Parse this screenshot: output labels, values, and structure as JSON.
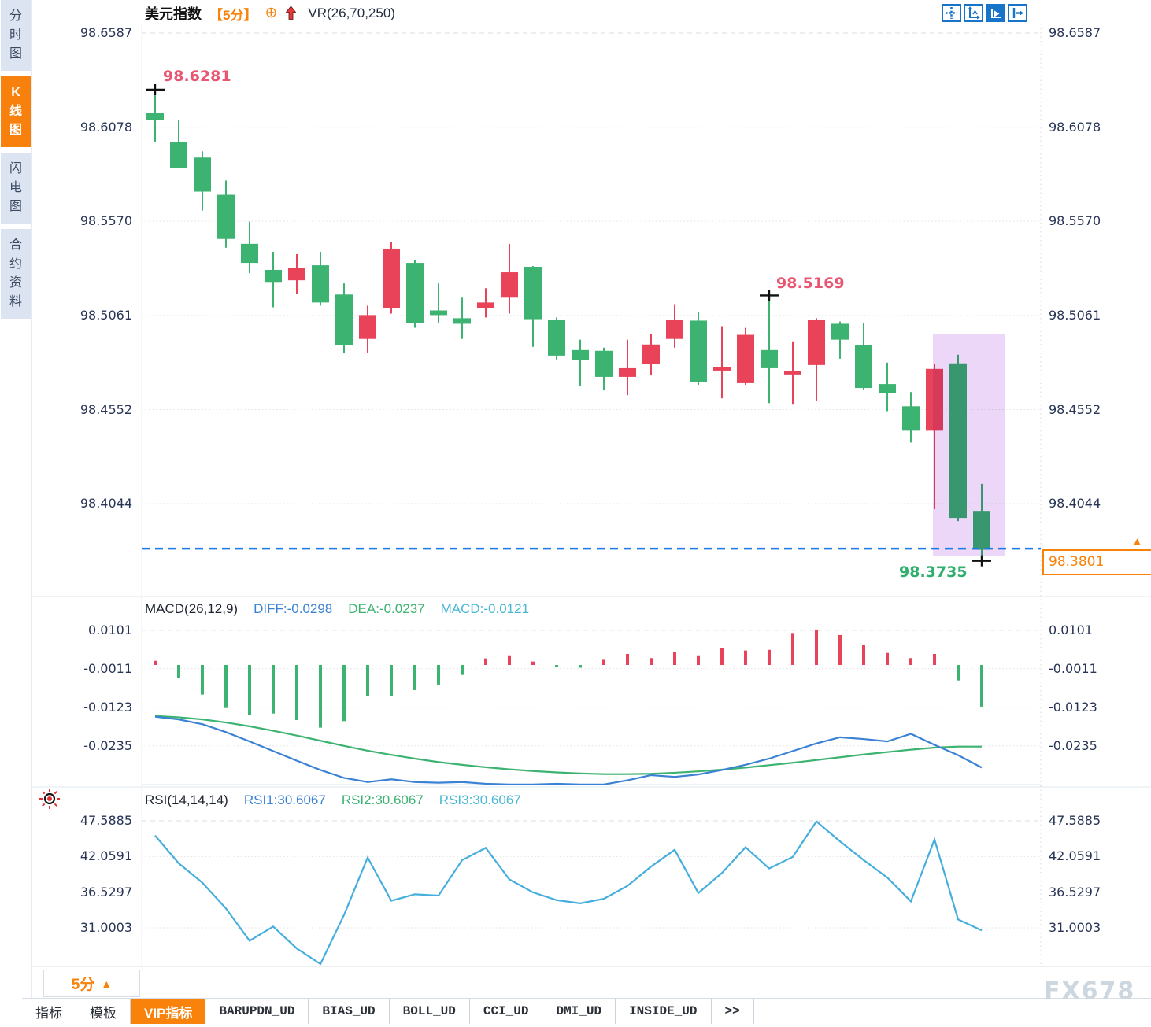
{
  "header": {
    "title": "美元指数",
    "period": "【5分】",
    "link_icon": "⊕",
    "vr_indicator": "VR(26,70,250)"
  },
  "sidebar": {
    "items": [
      {
        "label": "分时图",
        "active": false
      },
      {
        "label": "K线图",
        "active": true
      },
      {
        "label": "闪电图",
        "active": false
      },
      {
        "label": "合约资料",
        "active": false
      }
    ]
  },
  "toolbar_icons": [
    "pan-crosshair-icon",
    "axis-scale-icon",
    "auto-scroll-icon",
    "jump-to-latest-icon"
  ],
  "annotations": {
    "high_first": "98.6281",
    "high_mid": "98.5169",
    "low_last": "98.3735",
    "current_price_tag": "98.3801",
    "tag_arrow": "▲"
  },
  "macd_panel": {
    "name": "MACD(26,12,9)",
    "diff_label": "DIFF:-0.0298",
    "dea_label": "DEA:-0.0237",
    "macd_label": "MACD:-0.0121"
  },
  "rsi_panel": {
    "name": "RSI(14,14,14)",
    "rsi1_label": "RSI1:30.6067",
    "rsi2_label": "RSI2:30.6067",
    "rsi3_label": "RSI3:30.6067"
  },
  "bottom": {
    "timeframe": "5分",
    "timeframe_arrow": "▲",
    "tabs": [
      {
        "label": "指标",
        "active": false,
        "mono": false
      },
      {
        "label": "模板",
        "active": false,
        "mono": false
      },
      {
        "label": "VIP指标",
        "active": true,
        "mono": false
      },
      {
        "label": "BARUPDN_UD",
        "active": false,
        "mono": true
      },
      {
        "label": "BIAS_UD",
        "active": false,
        "mono": true
      },
      {
        "label": "BOLL_UD",
        "active": false,
        "mono": true
      },
      {
        "label": "CCI_UD",
        "active": false,
        "mono": true
      },
      {
        "label": "DMI_UD",
        "active": false,
        "mono": true
      },
      {
        "label": "INSIDE_UD",
        "active": false,
        "mono": true
      },
      {
        "label": ">>",
        "active": false,
        "mono": true
      }
    ]
  },
  "watermark": "FX678",
  "colors": {
    "up_red": "#e9435a",
    "down_green": "#3cb371",
    "diff_line": "#3b82d4",
    "dea_line": "#3cb371",
    "rsi_line": "#45aedd",
    "accent_orange": "#f8820a",
    "support_dash": "#1b7ce8",
    "highlight_box": "#ddb6f2",
    "grid": "#e3e3e3",
    "panel_border": "#dfe8f2"
  },
  "chart_data": {
    "type": "candlestick",
    "symbol": "美元指数",
    "interval": "5分",
    "main_axis": {
      "labels": [
        "98.6587",
        "98.6078",
        "98.5570",
        "98.5061",
        "98.4552",
        "98.4044"
      ],
      "values": [
        98.6587,
        98.6078,
        98.557,
        98.5061,
        98.4552,
        98.4044
      ]
    },
    "support_line_price": 98.3801,
    "candles_ohlc": [
      [
        98.6154,
        98.6281,
        98.5999,
        98.6115
      ],
      [
        98.5996,
        98.6115,
        98.5859,
        98.5859
      ],
      [
        98.5914,
        98.5948,
        98.5627,
        98.573
      ],
      [
        98.5713,
        98.579,
        98.5427,
        98.5474
      ],
      [
        98.5448,
        98.5568,
        98.5289,
        98.5345
      ],
      [
        98.5307,
        98.5405,
        98.5105,
        98.5242
      ],
      [
        98.5251,
        98.5392,
        98.5178,
        98.5319
      ],
      [
        98.5332,
        98.5405,
        98.5114,
        98.5131
      ],
      [
        98.5174,
        98.5234,
        98.4857,
        98.49
      ],
      [
        98.4934,
        98.5114,
        98.4857,
        98.5063
      ],
      [
        98.5101,
        98.5456,
        98.5071,
        98.5422
      ],
      [
        98.5345,
        98.5362,
        98.4994,
        98.502
      ],
      [
        98.5088,
        98.5234,
        98.502,
        98.5063
      ],
      [
        98.5046,
        98.5157,
        98.4934,
        98.5016
      ],
      [
        98.5101,
        98.5208,
        98.505,
        98.5131
      ],
      [
        98.5157,
        98.5448,
        98.5071,
        98.5294
      ],
      [
        98.5324,
        98.5328,
        98.4891,
        98.5041
      ],
      [
        98.5037,
        98.505,
        98.4823,
        98.4844
      ],
      [
        98.4874,
        98.493,
        98.4678,
        98.4819
      ],
      [
        98.487,
        98.4887,
        98.4656,
        98.4729
      ],
      [
        98.4729,
        98.493,
        98.463,
        98.478
      ],
      [
        98.4797,
        98.496,
        98.4737,
        98.4904
      ],
      [
        98.4934,
        98.5122,
        98.4887,
        98.5037
      ],
      [
        98.5033,
        98.508,
        98.4686,
        98.4703
      ],
      [
        98.4763,
        98.5003,
        98.4613,
        98.4784
      ],
      [
        98.4695,
        98.4994,
        98.4686,
        98.4956
      ],
      [
        98.4874,
        98.5169,
        98.4587,
        98.478
      ],
      [
        98.4742,
        98.4921,
        98.4583,
        98.4759
      ],
      [
        98.4793,
        98.5046,
        98.46,
        98.5037
      ],
      [
        98.5016,
        98.5028,
        98.4827,
        98.493
      ],
      [
        98.49,
        98.502,
        98.466,
        98.4669
      ],
      [
        98.469,
        98.4806,
        98.4544,
        98.4643
      ],
      [
        98.457,
        98.4647,
        98.4374,
        98.4438
      ],
      [
        98.4438,
        98.4801,
        98.4014,
        98.4772
      ],
      [
        98.4802,
        98.4849,
        98.395,
        98.3967
      ],
      [
        98.4005,
        98.4151,
        98.3735,
        98.3795
      ]
    ],
    "crosshair_marks": [
      {
        "candle": 0,
        "price": 98.6281
      },
      {
        "candle": 26,
        "price": 98.5169
      },
      {
        "candle": 35,
        "price": 98.3735
      }
    ],
    "macd": {
      "axis": {
        "labels": [
          "0.0101",
          "-0.0011",
          "-0.0123",
          "-0.0235"
        ],
        "values": [
          0.0101,
          -0.0011,
          -0.0123,
          -0.0235
        ]
      },
      "diff": [
        -0.015,
        -0.0158,
        -0.0172,
        -0.0195,
        -0.0222,
        -0.025,
        -0.0278,
        -0.0305,
        -0.0328,
        -0.034,
        -0.0332,
        -0.034,
        -0.0342,
        -0.034,
        -0.0345,
        -0.0347,
        -0.0347,
        -0.0345,
        -0.0347,
        -0.0347,
        -0.0335,
        -0.032,
        -0.0325,
        -0.0318,
        -0.0305,
        -0.029,
        -0.0272,
        -0.025,
        -0.0228,
        -0.021,
        -0.0215,
        -0.0222,
        -0.02,
        -0.0232,
        -0.0262,
        -0.0298
      ],
      "dea": [
        -0.0148,
        -0.0152,
        -0.0158,
        -0.0167,
        -0.0178,
        -0.0191,
        -0.0205,
        -0.022,
        -0.0235,
        -0.0249,
        -0.0261,
        -0.0272,
        -0.0282,
        -0.029,
        -0.0297,
        -0.0303,
        -0.0308,
        -0.0312,
        -0.0315,
        -0.0317,
        -0.0317,
        -0.0316,
        -0.0313,
        -0.0309,
        -0.0304,
        -0.0298,
        -0.0291,
        -0.0284,
        -0.0276,
        -0.0268,
        -0.026,
        -0.0253,
        -0.0246,
        -0.024,
        -0.0237,
        -0.0237
      ],
      "hist": [
        0.0012,
        -0.0038,
        -0.0086,
        -0.0125,
        -0.0144,
        -0.0141,
        -0.016,
        -0.0182,
        -0.0163,
        -0.0091,
        -0.0091,
        -0.0073,
        -0.0057,
        -0.0029,
        0.0019,
        0.0028,
        0.001,
        -0.0005,
        -0.0008,
        0.0015,
        0.0032,
        0.002,
        0.0037,
        0.0028,
        0.0048,
        0.0042,
        0.0044,
        0.0093,
        0.0103,
        0.0087,
        0.0058,
        0.0035,
        0.002,
        0.0032,
        -0.0045,
        -0.0121
      ]
    },
    "rsi": {
      "axis": {
        "labels": [
          "47.5885",
          "42.0591",
          "36.5297",
          "31.0003"
        ],
        "values": [
          47.5885,
          42.0591,
          36.5297,
          31.0003
        ]
      },
      "values": [
        45.3,
        41.0,
        38.0,
        34.0,
        29.0,
        31.2,
        27.8,
        25.4,
        33.0,
        41.9,
        35.2,
        36.2,
        36.0,
        41.5,
        43.4,
        38.5,
        36.5,
        35.3,
        34.8,
        35.5,
        37.5,
        40.5,
        43.1,
        36.4,
        39.5,
        43.5,
        40.2,
        42.0,
        47.5,
        44.4,
        41.5,
        38.8,
        35.1,
        44.7,
        32.3,
        30.6
      ]
    }
  }
}
